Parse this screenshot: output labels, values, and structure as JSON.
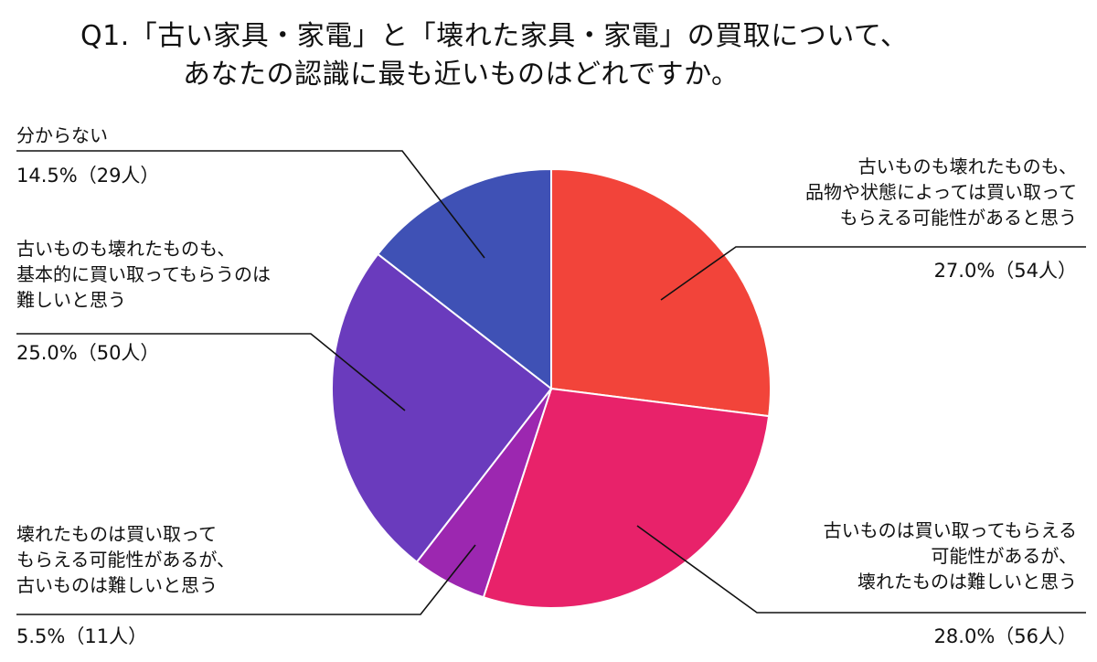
{
  "title": {
    "line1": "Q1.「古い家具・家電」と「壊れた家具・家電」の買取について、",
    "line2": "あなたの認識に最も近いものはどれですか。"
  },
  "chart_data": {
    "type": "pie",
    "start_angle_deg": 0,
    "direction": "clockwise",
    "slices": [
      {
        "label_lines": [
          "古いものも壊れたものも、",
          "品物や状態によっては買い取って",
          "もらえる可能性があると思う"
        ],
        "value_text": "27.0%（54人）",
        "percent": 27.0,
        "count": 54,
        "color": "#f2443a"
      },
      {
        "label_lines": [
          "古いものは買い取ってもらえる",
          "可能性があるが、",
          "壊れたものは難しいと思う"
        ],
        "value_text": "28.0%（56人）",
        "percent": 28.0,
        "count": 56,
        "color": "#e8226a"
      },
      {
        "label_lines": [
          "壊れたものは買い取って",
          "もらえる可能性があるが、",
          "古いものは難しいと思う"
        ],
        "value_text": "5.5%（11人）",
        "percent": 5.5,
        "count": 11,
        "color": "#9c27b0"
      },
      {
        "label_lines": [
          "古いものも壊れたものも、",
          "基本的に買い取ってもらうのは",
          "難しいと思う"
        ],
        "value_text": "25.0%（50人）",
        "percent": 25.0,
        "count": 50,
        "color": "#6a3bbd"
      },
      {
        "label_lines": [
          "分からない"
        ],
        "value_text": "14.5%（29人）",
        "percent": 14.5,
        "count": 29,
        "color": "#3f51b5"
      }
    ]
  }
}
